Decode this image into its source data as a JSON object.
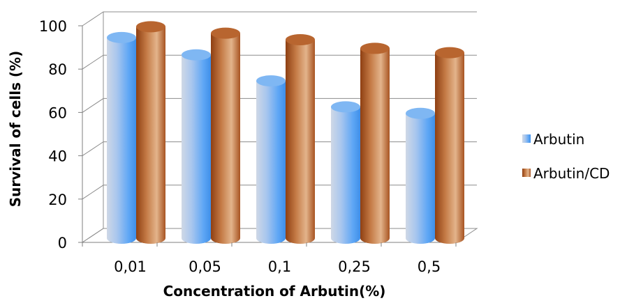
{
  "chart_data": {
    "type": "bar",
    "title": "",
    "xlabel": "Concentration of Arbutin(%)",
    "ylabel": "Survival of cells (%)",
    "categories": [
      "0,01",
      "0,05",
      "0,1",
      "0,25",
      "0,5"
    ],
    "ylim": [
      0,
      100
    ],
    "yticks": [
      "0",
      "20",
      "40",
      "60",
      "80",
      "100"
    ],
    "grid": true,
    "legend_position": "right",
    "series": [
      {
        "name": "Arbutin",
        "values": [
          92,
          84,
          72,
          60,
          57
        ],
        "color": "#6aaef2"
      },
      {
        "name": "Arbutin/CD",
        "values": [
          97,
          94,
          91,
          87,
          85
        ],
        "color": "#b4622c"
      }
    ]
  }
}
